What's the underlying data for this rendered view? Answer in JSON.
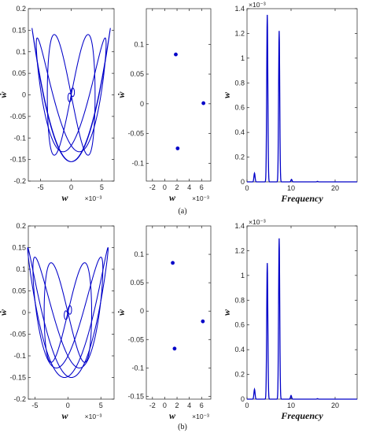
{
  "colors": {
    "series": "#0000c8",
    "axis": "#222222"
  },
  "captions": {
    "a": "(a)",
    "b": "(b)"
  },
  "chart_data": [
    {
      "id": "a-phase",
      "type": "line",
      "title": "",
      "xlabel": "w",
      "x_exponent": "×10⁻³",
      "ylabel": "ẇ",
      "xlim": [
        -7,
        7
      ],
      "ylim": [
        -0.2,
        0.2
      ],
      "xticks": [
        -5,
        0,
        5
      ],
      "yticks": [
        -0.2,
        -0.15,
        -0.1,
        -0.05,
        0,
        0.05,
        0.1,
        0.15,
        0.2
      ],
      "ytick_labels": [
        "-0.2",
        "-0.15",
        "-0.1",
        "-0.05",
        "0",
        "0.05",
        "0.1",
        "0.15",
        "0.2"
      ],
      "series": [
        {
          "loops": [
            {
              "ax": 6.4,
              "ay": 0.155,
              "delta": 0.78
            },
            {
              "ax": 5.7,
              "ay": 0.132,
              "delta": 0.55
            },
            {
              "ax": 3.9,
              "ay": 0.14,
              "delta": 0.0
            }
          ],
          "small_loop_amp": 0.5
        }
      ]
    },
    {
      "id": "a-poincare",
      "type": "scatter",
      "title": "",
      "xlabel": "w",
      "x_exponent": "×10⁻³",
      "ylabel": "ẇ",
      "xlim": [
        -3,
        7.5
      ],
      "ylim": [
        -0.13,
        0.16
      ],
      "xticks": [
        -2,
        0,
        2,
        4,
        6
      ],
      "yticks": [
        -0.1,
        -0.05,
        0,
        0.05,
        0.1
      ],
      "ytick_labels": [
        "-0.1",
        "-0.05",
        "0",
        "0.05",
        "0.1"
      ],
      "x": [
        1.8,
        2.1,
        6.3
      ],
      "y": [
        0.083,
        -0.075,
        0.001
      ]
    },
    {
      "id": "a-spectrum",
      "type": "line",
      "title": "",
      "xlabel": "Frequency",
      "ylabel": "w",
      "y_exponent": "×10⁻³",
      "xlim": [
        0,
        25
      ],
      "ylim": [
        0,
        1.4
      ],
      "xticks": [
        0,
        10,
        20
      ],
      "yticks": [
        0,
        0.2,
        0.4,
        0.6,
        0.8,
        1,
        1.2,
        1.4
      ],
      "ytick_labels": [
        "0",
        "0.2",
        "0.4",
        "0.6",
        "0.8",
        "1",
        "1.2",
        "1.4"
      ],
      "peaks": [
        {
          "x": 1.7,
          "y": 0.07
        },
        {
          "x": 4.6,
          "y": 1.35
        },
        {
          "x": 7.3,
          "y": 1.22
        },
        {
          "x": 10.1,
          "y": 0.02
        },
        {
          "x": 16,
          "y": 0.004
        }
      ]
    },
    {
      "id": "b-phase",
      "type": "line",
      "title": "",
      "xlabel": "w",
      "x_exponent": "×10⁻³",
      "ylabel": "ẇ",
      "xlim": [
        -6,
        7
      ],
      "ylim": [
        -0.2,
        0.2
      ],
      "xticks": [
        -5,
        0,
        5
      ],
      "yticks": [
        -0.2,
        -0.15,
        -0.1,
        -0.05,
        0,
        0.05,
        0.1,
        0.15,
        0.2
      ],
      "ytick_labels": [
        "-0.2",
        "-0.15",
        "-0.1",
        "-0.05",
        "0",
        "0.05",
        "0.1",
        "0.15",
        "0.2"
      ],
      "series": [
        {
          "loops": [
            {
              "ax": 6.1,
              "ay": 0.15,
              "delta": 0.7
            },
            {
              "ax": 5.3,
              "ay": 0.128,
              "delta": 0.45
            },
            {
              "ax": 3.6,
              "ay": 0.115,
              "delta": 0.0
            }
          ],
          "small_loop_amp": 0.6
        }
      ]
    },
    {
      "id": "b-poincare",
      "type": "scatter",
      "title": "",
      "xlabel": "w",
      "x_exponent": "×10⁻³",
      "ylabel": "ẇ",
      "xlim": [
        -3,
        7.5
      ],
      "ylim": [
        -0.155,
        0.15
      ],
      "xticks": [
        -2,
        0,
        2,
        4,
        6
      ],
      "yticks": [
        -0.15,
        -0.1,
        -0.05,
        0,
        0.05,
        0.1
      ],
      "ytick_labels": [
        "-0.15",
        "-0.1",
        "-0.05",
        "0",
        "0.05",
        "0.1"
      ],
      "x": [
        1.3,
        1.6,
        6.2
      ],
      "y": [
        0.085,
        -0.066,
        -0.018
      ]
    },
    {
      "id": "b-spectrum",
      "type": "line",
      "title": "",
      "xlabel": "Frequency",
      "ylabel": "w",
      "y_exponent": "×10⁻³",
      "xlim": [
        0,
        25
      ],
      "ylim": [
        0,
        1.4
      ],
      "xticks": [
        0,
        10,
        20
      ],
      "yticks": [
        0,
        0.2,
        0.4,
        0.6,
        0.8,
        1,
        1.2,
        1.4
      ],
      "ytick_labels": [
        "0",
        "0.2",
        "0.4",
        "0.6",
        "0.8",
        "1",
        "1.2",
        "1.4"
      ],
      "peaks": [
        {
          "x": 1.7,
          "y": 0.08
        },
        {
          "x": 4.6,
          "y": 1.1
        },
        {
          "x": 7.3,
          "y": 1.3
        },
        {
          "x": 10.0,
          "y": 0.03
        },
        {
          "x": 16,
          "y": 0.004
        }
      ]
    }
  ]
}
